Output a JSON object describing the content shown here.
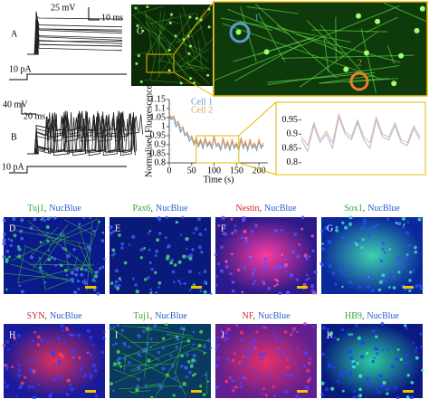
{
  "panels": {
    "a": {
      "label": "A",
      "mv": "25 mV",
      "ms": "10 ms",
      "pa": "10 pA"
    },
    "b": {
      "label": "B",
      "mv": "40 mV",
      "ms": "20 ms",
      "pa": "10 pA"
    },
    "c": {
      "label": "C",
      "cell1": "1",
      "cell2": "2"
    }
  },
  "chart_data": [
    {
      "type": "line",
      "ylabel": "Normalised Fluorescence",
      "xlabel": "Time (s)",
      "x": [
        0,
        5,
        10,
        15,
        20,
        25,
        30,
        35,
        40,
        45,
        50,
        55,
        60,
        65,
        70,
        75,
        80,
        85,
        90,
        95,
        100,
        105,
        110,
        115,
        120,
        125,
        130,
        135,
        140,
        145,
        150,
        155,
        160,
        165,
        170,
        175,
        180,
        185,
        190,
        195,
        200,
        205,
        210
      ],
      "series": [
        {
          "name": "Cell 1",
          "color": "#5b9bd5",
          "values": [
            1.06,
            1.04,
            1.05,
            1.0,
            1.02,
            0.97,
            0.99,
            0.95,
            0.96,
            0.92,
            0.94,
            0.9,
            0.93,
            0.89,
            0.92,
            0.88,
            0.93,
            0.89,
            0.91,
            0.88,
            0.94,
            0.89,
            0.9,
            0.87,
            0.93,
            0.88,
            0.91,
            0.87,
            0.92,
            0.88,
            0.9,
            0.87,
            0.93,
            0.88,
            0.91,
            0.87,
            0.92,
            0.88,
            0.9,
            0.87,
            0.92,
            0.88,
            0.9
          ]
        },
        {
          "name": "Cell 2",
          "color": "#ed9a55",
          "values": [
            1.07,
            1.05,
            1.06,
            1.02,
            1.03,
            0.99,
            1.0,
            0.96,
            0.97,
            0.94,
            0.95,
            0.91,
            0.94,
            0.9,
            0.93,
            0.89,
            0.94,
            0.9,
            0.92,
            0.89,
            0.95,
            0.9,
            0.91,
            0.88,
            0.94,
            0.89,
            0.92,
            0.88,
            0.93,
            0.89,
            0.91,
            0.88,
            0.94,
            0.89,
            0.92,
            0.88,
            0.93,
            0.89,
            0.91,
            0.88,
            0.93,
            0.89,
            0.91
          ]
        }
      ],
      "xlim": [
        0,
        220
      ],
      "ylim": [
        0.8,
        1.15
      ],
      "xticks": [
        0,
        50,
        100,
        150,
        200
      ],
      "yticks": [
        0.8,
        0.85,
        0.9,
        0.95,
        1,
        1.05,
        1.1,
        1.15
      ]
    },
    {
      "type": "line",
      "x": [
        60,
        65,
        70,
        75,
        80,
        85,
        90,
        95,
        100,
        105,
        110,
        115,
        120,
        125,
        130,
        135,
        140,
        145,
        150,
        155
      ],
      "series": [
        {
          "color": "#9db8e0",
          "values": [
            0.88,
            0.84,
            0.93,
            0.87,
            0.9,
            0.85,
            0.96,
            0.9,
            0.88,
            0.94,
            0.88,
            0.85,
            0.95,
            0.89,
            0.88,
            0.93,
            0.87,
            0.86,
            0.92,
            0.88
          ]
        },
        {
          "color": "#e8ad88",
          "values": [
            0.89,
            0.86,
            0.94,
            0.88,
            0.91,
            0.87,
            0.97,
            0.91,
            0.89,
            0.95,
            0.89,
            0.87,
            0.96,
            0.9,
            0.89,
            0.94,
            0.88,
            0.87,
            0.93,
            0.89
          ]
        }
      ],
      "xlim": [
        60,
        155
      ],
      "ylim": [
        0.78,
        0.99
      ],
      "yticks": [
        0.8,
        0.85,
        0.9,
        0.95
      ]
    }
  ],
  "images": [
    {
      "letter": "D",
      "marker": "Tuj1",
      "sep": ",",
      "stain": "NucBlue"
    },
    {
      "letter": "E",
      "marker": "Pax6",
      "sep": ",",
      "stain": "NucBlue"
    },
    {
      "letter": "F",
      "marker": "Nestin",
      "sep": ",",
      "stain": "NucBlue"
    },
    {
      "letter": "G",
      "marker": "Sox1",
      "sep": ",",
      "stain": "NucBlue"
    },
    {
      "letter": "H",
      "marker": "SYN",
      "sep": ",",
      "stain": "NucBlue"
    },
    {
      "letter": "I",
      "marker": "Tuj1",
      "sep": ",",
      "stain": "NucBlue"
    },
    {
      "letter": "J",
      "marker": "NF",
      "sep": ",",
      "stain": "NucBlue"
    },
    {
      "letter": "K",
      "marker": "HB9",
      "sep": ",",
      "stain": "NucBlue"
    }
  ]
}
